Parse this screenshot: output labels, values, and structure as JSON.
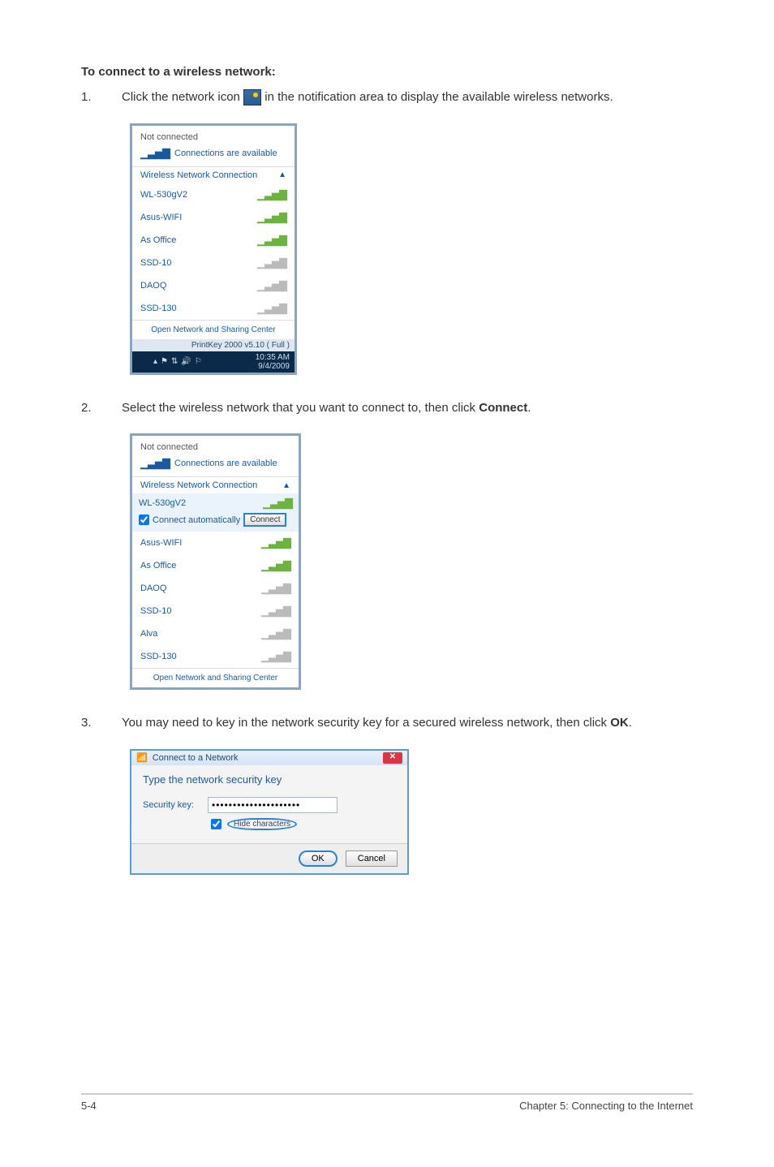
{
  "title": "To connect to a wireless network:",
  "step1": {
    "num": "1.",
    "pre": "Click the network icon ",
    "post": " in the notification area to display the available wireless networks."
  },
  "shot1": {
    "not_connected": "Not connected",
    "available": "Connections are available",
    "section": "Wireless Network Connection",
    "nets": [
      {
        "name": "WL-530gV2",
        "strong": true
      },
      {
        "name": "Asus-WIFI",
        "strong": true
      },
      {
        "name": "As Office",
        "strong": true
      },
      {
        "name": "SSD-10",
        "strong": false
      },
      {
        "name": "DAOQ",
        "strong": false
      },
      {
        "name": "SSD-130",
        "strong": false
      }
    ],
    "open_center": "Open Network and Sharing Center",
    "printkey": "PrintKey 2000  v5.10 ( Full )",
    "clock_time": "10:35 AM",
    "clock_date": "9/4/2009"
  },
  "step2": {
    "num": "2.",
    "pre": "Select the wireless network that you want to connect to, then click ",
    "bold": "Connect",
    "post": "."
  },
  "shot2": {
    "not_connected": "Not connected",
    "available": "Connections are available",
    "section": "Wireless Network Connection",
    "selected": "WL-530gV2",
    "auto": "Connect automatically",
    "connect": "Connect",
    "nets": [
      {
        "name": "Asus-WIFI",
        "strong": true
      },
      {
        "name": "As Office",
        "strong": true
      },
      {
        "name": "DAOQ",
        "strong": false
      },
      {
        "name": "SSD-10",
        "strong": false
      },
      {
        "name": "Alva",
        "strong": false
      },
      {
        "name": "SSD-130",
        "strong": false
      }
    ],
    "open_center": "Open Network and Sharing Center"
  },
  "step3": {
    "num": "3.",
    "pre": "You may need to key in the network security key for a secured wireless network, then click ",
    "bold": "OK",
    "post": "."
  },
  "shot3": {
    "title": "Connect to a Network",
    "heading": "Type the network security key",
    "label": "Security key:",
    "value": "•••••••••••••••••••••",
    "hide": "Hide characters",
    "ok": "OK",
    "cancel": "Cancel"
  },
  "footer": {
    "left": "5-4",
    "right": "Chapter 5: Connecting to the Internet"
  }
}
